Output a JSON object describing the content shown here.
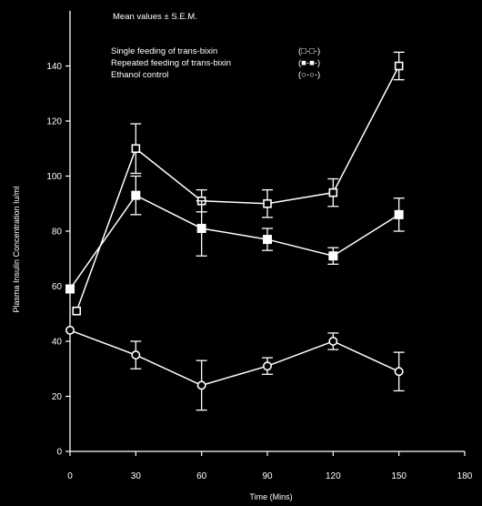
{
  "chart_data": {
    "type": "line",
    "title": "",
    "xlabel": "Time (Mins)",
    "ylabel": "Plasma Insulin Concentration   Iu/ml",
    "xlim": [
      0,
      180
    ],
    "ylim": [
      0,
      160
    ],
    "x_ticks": [
      "0",
      "30",
      "60",
      "90",
      "120",
      "150",
      "180"
    ],
    "y_ticks": [
      "0",
      "20",
      "40",
      "60",
      "80",
      "100",
      "120",
      "140"
    ],
    "grid": false,
    "note": "Mean values ± S.E.M.",
    "legend": {
      "placement": "top",
      "entries": [
        {
          "label": "Single feeding of trans-bixin",
          "key": "(□-□-)"
        },
        {
          "label": "Repeated feeding of trans-bixin",
          "key": "(■-■-)"
        },
        {
          "label": "Ethanol control",
          "key": "(○-○-)"
        }
      ]
    },
    "series": [
      {
        "marker": "square-open",
        "x": [
          3,
          30,
          60,
          90,
          120,
          150
        ],
        "y": [
          51,
          110,
          91,
          90,
          94,
          140
        ],
        "err": [
          0,
          9,
          4,
          5,
          5,
          5
        ]
      },
      {
        "marker": "square-filled",
        "x": [
          0,
          30,
          60,
          90,
          120,
          150
        ],
        "y": [
          59,
          93,
          81,
          77,
          71,
          86
        ],
        "err": [
          0,
          7,
          10,
          4,
          3,
          6
        ]
      },
      {
        "marker": "circle-open",
        "x": [
          0,
          30,
          60,
          90,
          120,
          150
        ],
        "y": [
          44,
          35,
          24,
          31,
          40,
          29
        ],
        "err": [
          0,
          5,
          9,
          3,
          3,
          7
        ]
      }
    ]
  }
}
